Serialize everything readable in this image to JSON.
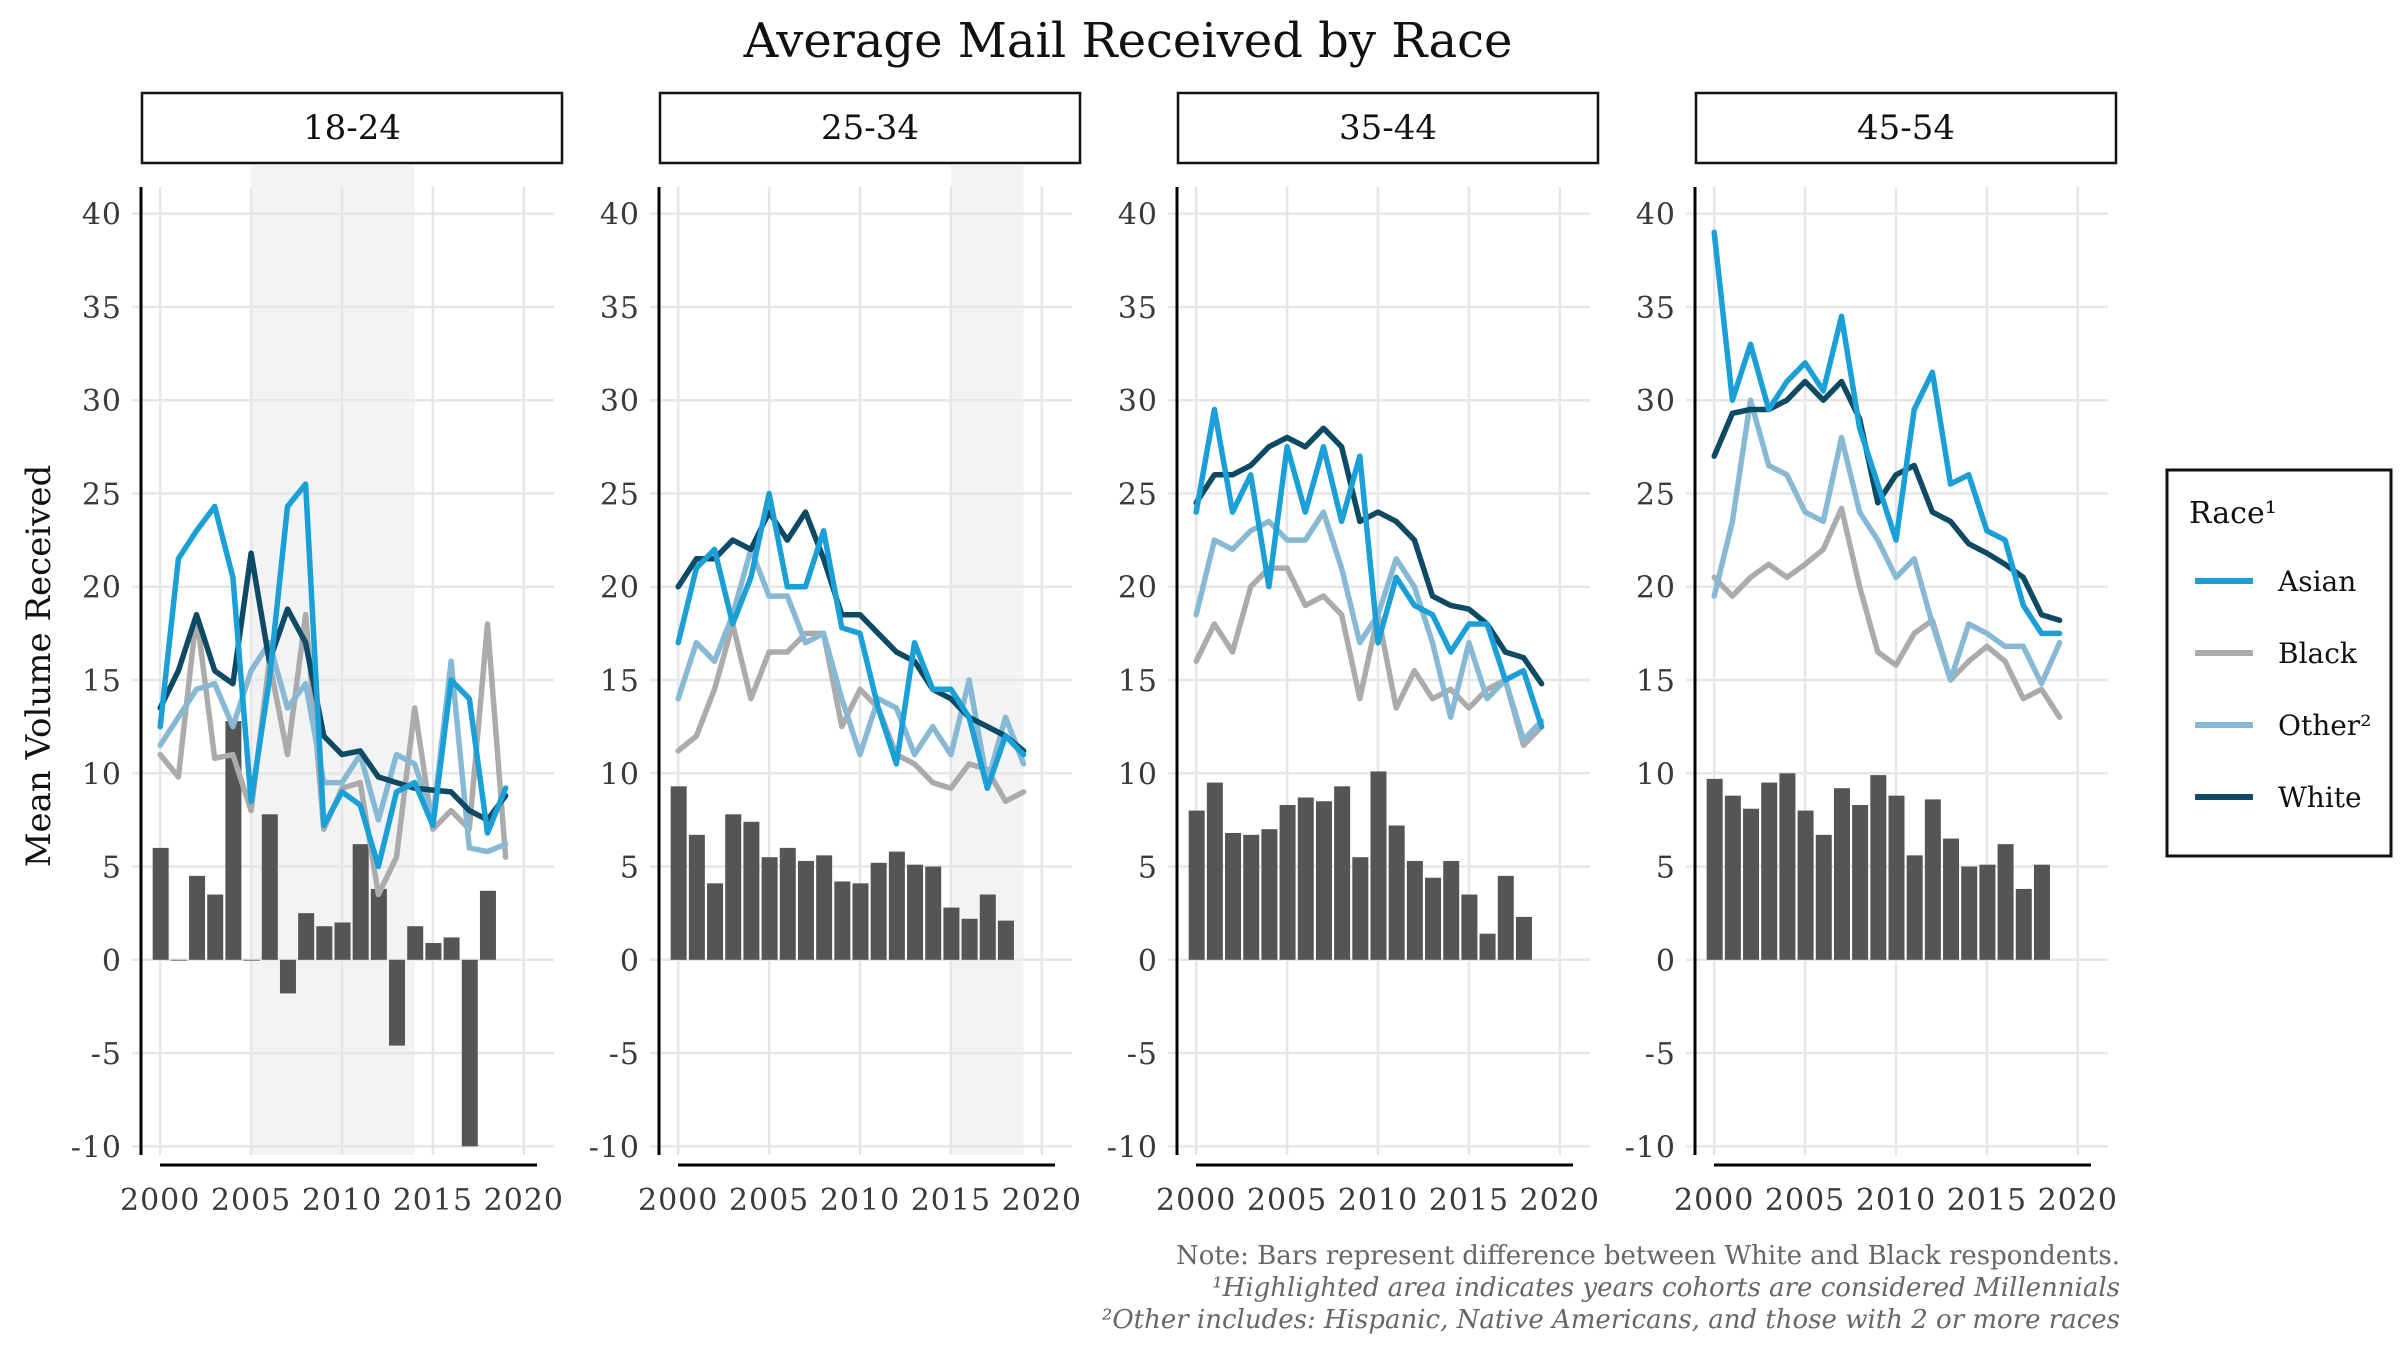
{
  "chart_data": {
    "type": "line",
    "title": "Average Mail Received by Race",
    "ylabel": "Mean Volume Received",
    "xlabel": "",
    "xlim": [
      1999,
      2021
    ],
    "ylim": [
      -11,
      41
    ],
    "x_ticks": [
      2000,
      2005,
      2010,
      2015,
      2020
    ],
    "x_tick_labels": [
      "2000",
      "2005",
      "2010",
      "2015",
      "2020"
    ],
    "y_ticks": [
      -10,
      -5,
      0,
      5,
      10,
      15,
      20,
      25,
      30,
      35,
      40
    ],
    "y_tick_labels": [
      "-10",
      "-5",
      "0",
      "5",
      "10",
      "15",
      "20",
      "25",
      "30",
      "35",
      "40"
    ],
    "grid": true,
    "legend_position": "right",
    "legend_title": "Race¹",
    "series_meta": [
      {
        "key": "Asian",
        "label": "Asian",
        "color": "#1a9fd6"
      },
      {
        "key": "Black",
        "label": "Black",
        "color": "#ababab"
      },
      {
        "key": "Other",
        "label": "Other²",
        "color": "#87b9d4"
      },
      {
        "key": "White",
        "label": "White",
        "color": "#0e4a63"
      }
    ],
    "bar_color": "#555555",
    "highlight_color": "#f2f3f5",
    "x": [
      2000,
      2001,
      2002,
      2003,
      2004,
      2005,
      2006,
      2007,
      2008,
      2009,
      2010,
      2011,
      2012,
      2013,
      2014,
      2015,
      2016,
      2017,
      2018,
      2019
    ],
    "panels": [
      {
        "label": "18-24",
        "highlight": [
          2005,
          2014
        ],
        "series": {
          "Asian": [
            12.5,
            21.5,
            23,
            24.3,
            20.5,
            8.5,
            15,
            24.3,
            25.5,
            7.2,
            9,
            8.3,
            5,
            9,
            9.5,
            7.2,
            15,
            14,
            6.8,
            9.2
          ],
          "Black": [
            11,
            9.8,
            18.5,
            10.8,
            11,
            8,
            16,
            11,
            18.5,
            7,
            9.2,
            9.5,
            3.5,
            5.5,
            13.5,
            7,
            8,
            7,
            18,
            5.5
          ],
          "Other": [
            11.5,
            13,
            14.5,
            14.8,
            12.5,
            15.5,
            17,
            13.5,
            14.8,
            9.5,
            9.5,
            11,
            7.5,
            11,
            10.5,
            7.5,
            16,
            6,
            5.8,
            6.2
          ],
          "White": [
            13.5,
            15.5,
            18.5,
            15.5,
            14.8,
            21.8,
            16,
            18.8,
            17,
            12,
            11,
            11.2,
            9.8,
            9.5,
            9.2,
            9.1,
            9,
            8,
            7.5,
            8.8
          ]
        },
        "bars": [
          6,
          0,
          4.5,
          3.5,
          12.8,
          0,
          7.8,
          -1.8,
          2.5,
          1.8,
          2,
          6.2,
          3.8,
          -4.6,
          1.8,
          0.9,
          1.2,
          -10,
          3.7
        ]
      },
      {
        "label": "25-34",
        "highlight": [
          2015,
          2019
        ],
        "series": {
          "Asian": [
            17,
            21,
            22,
            18,
            20.5,
            25,
            20,
            20,
            23,
            17.8,
            17.5,
            13.5,
            10.5,
            17,
            14.5,
            14.5,
            13,
            9.2,
            12,
            11
          ],
          "Black": [
            11.2,
            12,
            14.5,
            18,
            14,
            16.5,
            16.5,
            17.5,
            17.5,
            12.5,
            14.5,
            13.5,
            11,
            10.5,
            9.5,
            9.2,
            10.5,
            10.2,
            8.5,
            9
          ],
          "Other": [
            14,
            17,
            16,
            18.5,
            22,
            19.5,
            19.5,
            17,
            17.5,
            14,
            11,
            14,
            13.5,
            11,
            12.5,
            11,
            15,
            9.5,
            13,
            10.5
          ],
          "White": [
            20,
            21.5,
            21.5,
            22.5,
            22,
            24,
            22.5,
            24,
            21.5,
            18.5,
            18.5,
            17.5,
            16.5,
            16,
            14.5,
            14,
            13,
            12.5,
            12,
            11.2
          ]
        },
        "bars": [
          9.3,
          6.7,
          4.1,
          7.8,
          7.4,
          5.5,
          6,
          5.3,
          5.6,
          4.2,
          4.1,
          5.2,
          5.8,
          5.1,
          5,
          2.8,
          2.2,
          3.5,
          2.1
        ]
      },
      {
        "label": "35-44",
        "highlight": null,
        "series": {
          "Asian": [
            24,
            29.5,
            24,
            26,
            20,
            27.5,
            24,
            27.5,
            23.5,
            27,
            17,
            20.5,
            19,
            18.5,
            16.5,
            18,
            18,
            15,
            15.5,
            12.5
          ],
          "Black": [
            16,
            18,
            16.5,
            20,
            21,
            21,
            19,
            19.5,
            18.5,
            14,
            18.5,
            13.5,
            15.5,
            14,
            14.5,
            13.5,
            14.5,
            15,
            11.5,
            12.5
          ],
          "Other": [
            18.5,
            22.5,
            22,
            23,
            23.5,
            22.5,
            22.5,
            24,
            21,
            17,
            18.5,
            21.5,
            20,
            17,
            13,
            17,
            14,
            15,
            11.8,
            12.8
          ],
          "White": [
            24.5,
            26,
            26,
            26.5,
            27.5,
            28,
            27.5,
            28.5,
            27.5,
            23.5,
            24,
            23.5,
            22.5,
            19.5,
            19,
            18.8,
            18,
            16.5,
            16.2,
            14.8
          ]
        },
        "bars": [
          8,
          9.5,
          6.8,
          6.7,
          7,
          8.3,
          8.7,
          8.5,
          9.3,
          5.5,
          10.1,
          7.2,
          5.3,
          4.4,
          5.3,
          3.5,
          1.4,
          4.5,
          2.3
        ]
      },
      {
        "label": "45-54",
        "highlight": null,
        "series": {
          "Asian": [
            39,
            30,
            33,
            29.5,
            31,
            32,
            30.5,
            34.5,
            28.5,
            25.5,
            22.5,
            29.5,
            31.5,
            25.5,
            26,
            23,
            22.5,
            19,
            17.5,
            17.5
          ],
          "Black": [
            20.5,
            19.5,
            20.5,
            21.2,
            20.5,
            21.2,
            22,
            24.2,
            20,
            16.5,
            15.8,
            17.5,
            18.2,
            15,
            16,
            16.8,
            16,
            14,
            14.5,
            13
          ],
          "Other": [
            19.5,
            23.5,
            30,
            26.5,
            26,
            24,
            23.5,
            28,
            24,
            22.5,
            20.5,
            21.5,
            18,
            15,
            18,
            17.5,
            16.8,
            16.8,
            14.8,
            17
          ],
          "White": [
            27,
            29.3,
            29.5,
            29.5,
            30,
            31,
            30,
            31,
            29,
            24.5,
            26,
            26.5,
            24,
            23.5,
            22.3,
            21.8,
            21.2,
            20.5,
            18.5,
            18.2
          ]
        },
        "bars": [
          9.7,
          8.8,
          8.1,
          9.5,
          10,
          8,
          6.7,
          9.2,
          8.3,
          9.9,
          8.8,
          5.6,
          8.6,
          6.5,
          5,
          5.1,
          6.2,
          3.8,
          5.1
        ]
      }
    ],
    "notes": [
      "Note: Bars represent difference between White and Black respondents.",
      "¹Highlighted area indicates years cohorts are considered Millennials",
      "²Other includes: Hispanic, Native Americans, and those with 2 or more races"
    ]
  }
}
